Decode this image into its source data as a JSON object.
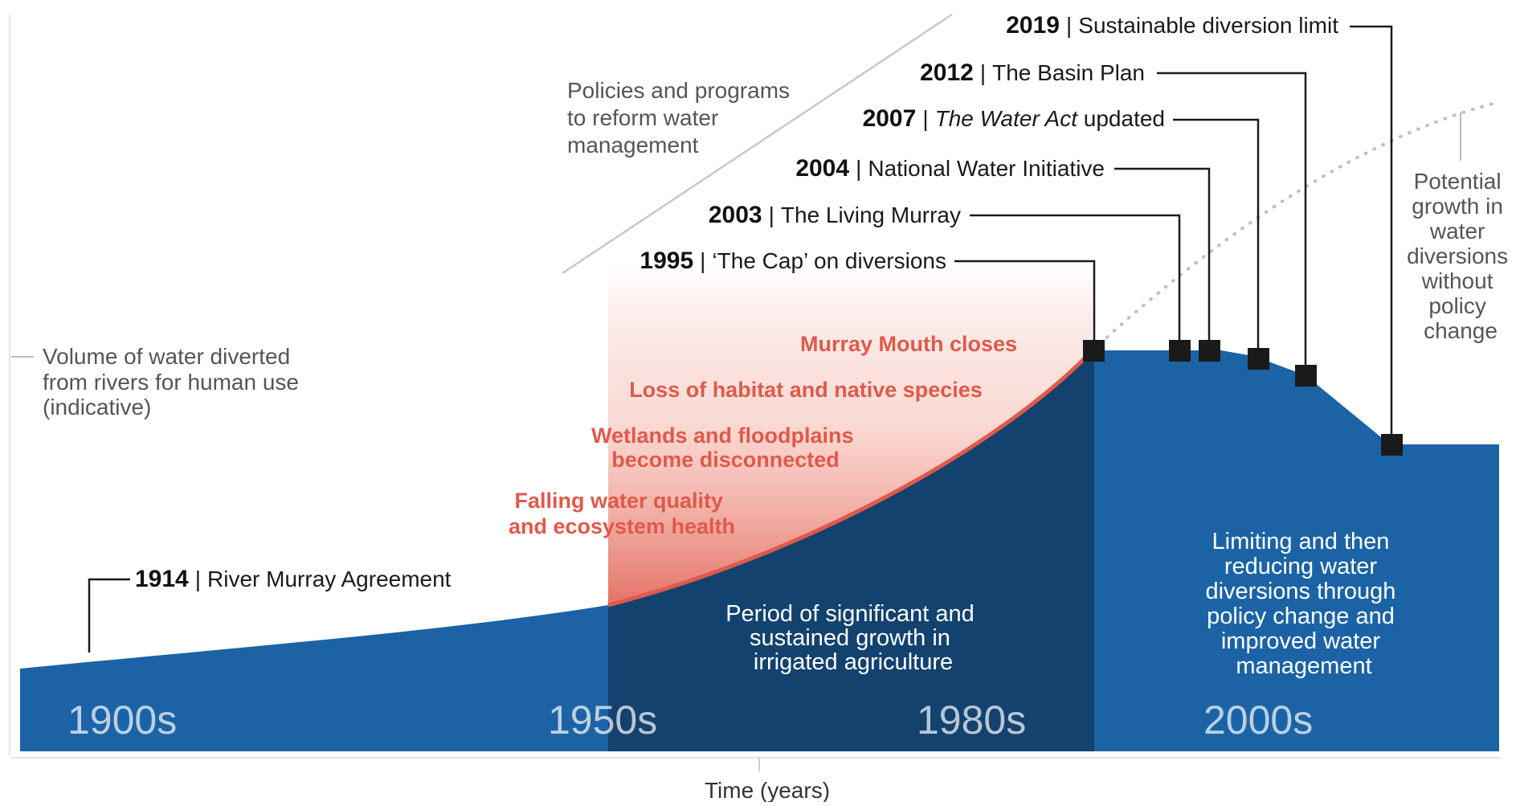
{
  "colors": {
    "area": "#1b63a5",
    "area_dark": "#13426f",
    "impact": "#e0594b",
    "line": "#1a1a1a"
  },
  "volume_label": [
    "Volume of water diverted",
    "from rivers for human use",
    "(indicative)"
  ],
  "policies_label": [
    "Policies and programs",
    "to reform water",
    "management"
  ],
  "potential_label": [
    "Potential",
    "growth in",
    "water",
    "diversions",
    "without",
    "policy",
    "change"
  ],
  "events": [
    {
      "year": "1914",
      "text": "River Murray Agreement"
    },
    {
      "year": "1995",
      "text": "‘The Cap’ on diversions"
    },
    {
      "year": "2003",
      "text": "The Living Murray"
    },
    {
      "year": "2004",
      "text": "National Water Initiative"
    },
    {
      "year": "2007",
      "text_italic": "The Water Act",
      "text": " updated"
    },
    {
      "year": "2012",
      "text": "The Basin Plan"
    },
    {
      "year": "2019",
      "text": "Sustainable diversion limit"
    }
  ],
  "separator": "|",
  "impacts": [
    [
      "Murray Mouth closes"
    ],
    [
      "Loss of habitat and native species"
    ],
    [
      "Wetlands and floodplains",
      "become disconnected"
    ],
    [
      "Falling water quality",
      "and ecosystem health"
    ]
  ],
  "era_growth": [
    "Period of significant and",
    "sustained growth in",
    "irrigated agriculture"
  ],
  "era_reform": [
    "Limiting and then",
    "reducing water",
    "diversions through",
    "policy change and",
    "improved water",
    "management"
  ],
  "decades": [
    "1900s",
    "1950s",
    "1980s",
    "2000s"
  ],
  "x_axis_label": "Time (years)"
}
